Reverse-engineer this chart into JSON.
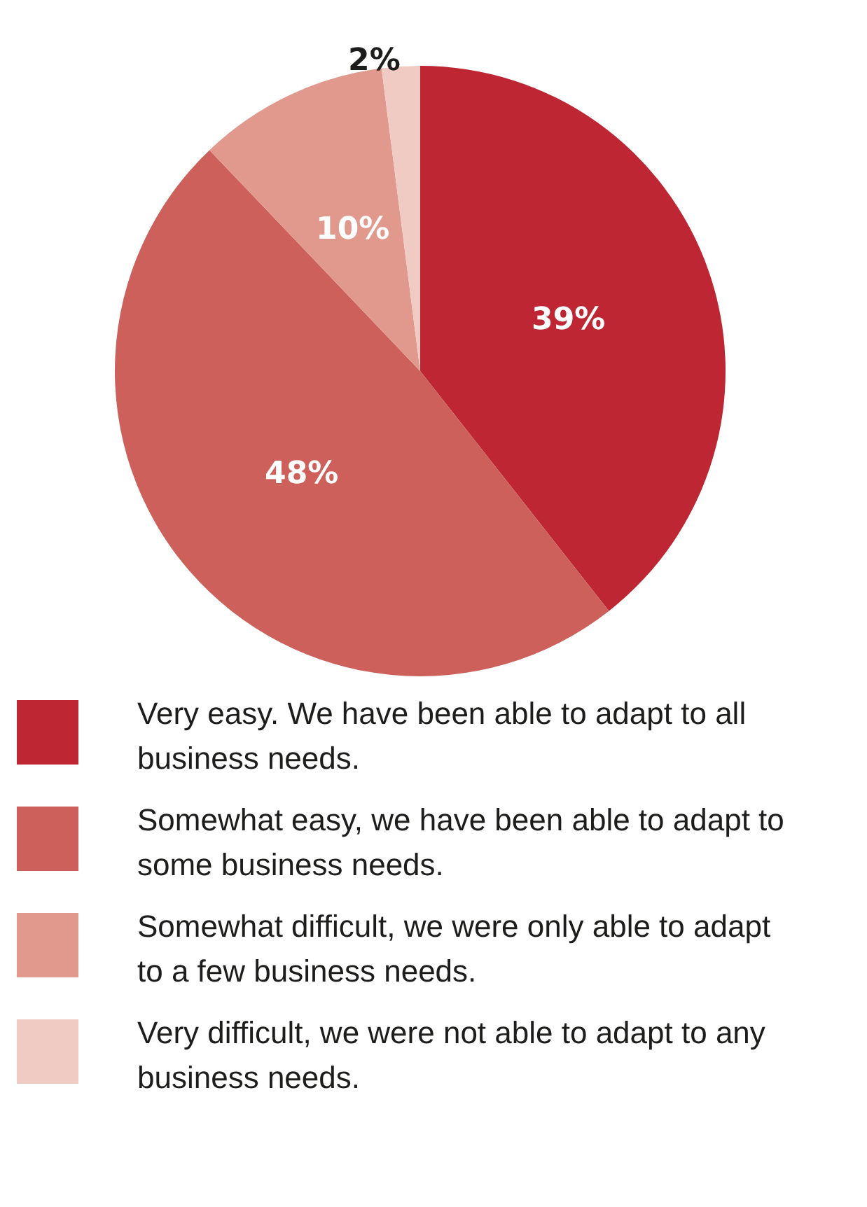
{
  "chart_data": {
    "type": "pie",
    "categories": [
      "Very easy. We have been able to adapt to all business needs.",
      "Somewhat easy, we have been able to adapt to some business needs.",
      "Somewhat difficult, we were only able to adapt to a few business needs.",
      "Very difficult, we were not able to adapt to any business needs."
    ],
    "values": [
      39,
      48,
      10,
      2
    ],
    "colors": [
      "#be2633",
      "#cd605a",
      "#e0998c",
      "#f0cbc4"
    ],
    "value_labels": [
      "39%",
      "48%",
      "10%",
      "2%"
    ],
    "legend": "bottom"
  }
}
